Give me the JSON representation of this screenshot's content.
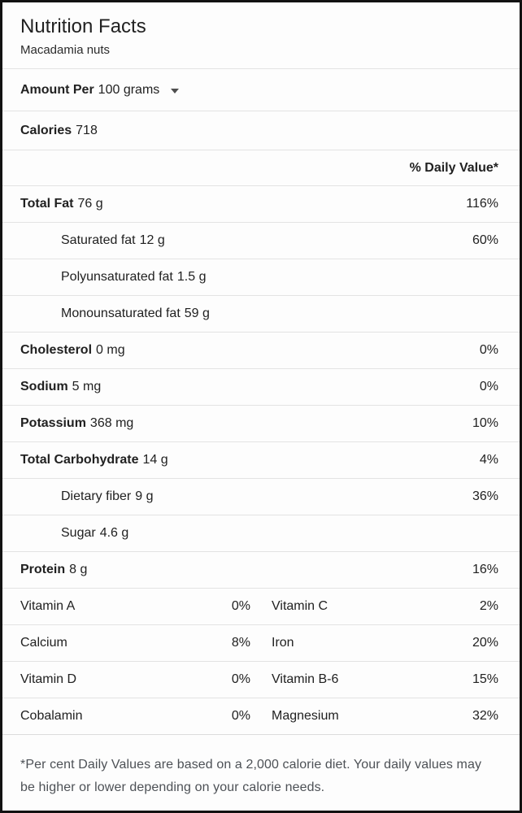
{
  "header": {
    "title": "Nutrition Facts",
    "subtitle": "Macadamia nuts"
  },
  "serving": {
    "label": "Amount Per",
    "value": "100 grams",
    "dropdown_icon": "caret-down-icon"
  },
  "calories": {
    "label": "Calories",
    "value": "718"
  },
  "daily_value_header": "% Daily Value*",
  "nutrient_rows": [
    {
      "label": "Total Fat",
      "amount": "76 g",
      "dv": "116%"
    },
    {
      "label": "Saturated fat",
      "amount": "12 g",
      "dv": "60%"
    },
    {
      "label": "Polyunsaturated fat",
      "amount": "1.5 g",
      "dv": ""
    },
    {
      "label": "Monounsaturated fat",
      "amount": "59 g",
      "dv": ""
    },
    {
      "label": "Cholesterol",
      "amount": "0 mg",
      "dv": "0%"
    },
    {
      "label": "Sodium",
      "amount": "5 mg",
      "dv": "0%"
    },
    {
      "label": "Potassium",
      "amount": "368 mg",
      "dv": "10%"
    },
    {
      "label": "Total Carbohydrate",
      "amount": "14 g",
      "dv": "4%"
    },
    {
      "label": "Dietary fiber",
      "amount": "9 g",
      "dv": "36%"
    },
    {
      "label": "Sugar",
      "amount": "4.6 g",
      "dv": ""
    },
    {
      "label": "Protein",
      "amount": "8 g",
      "dv": "16%"
    }
  ],
  "micronutrient_rows": [
    {
      "left": {
        "label": "Vitamin A",
        "dv": "0%"
      },
      "right": {
        "label": "Vitamin C",
        "dv": "2%"
      }
    },
    {
      "left": {
        "label": "Calcium",
        "dv": "8%"
      },
      "right": {
        "label": "Iron",
        "dv": "20%"
      }
    },
    {
      "left": {
        "label": "Vitamin D",
        "dv": "0%"
      },
      "right": {
        "label": "Vitamin B-6",
        "dv": "15%"
      }
    },
    {
      "left": {
        "label": "Cobalamin",
        "dv": "0%"
      },
      "right": {
        "label": "Magnesium",
        "dv": "32%"
      }
    }
  ],
  "footnote": "*Per cent Daily Values are based on a 2,000 calorie diet. Your daily values may be higher or lower depending on your calorie needs.",
  "colors": {
    "text": "#212121",
    "divider": "#e3e3e3",
    "frame_border": "#121212",
    "footnote_text": "#4d5156"
  }
}
